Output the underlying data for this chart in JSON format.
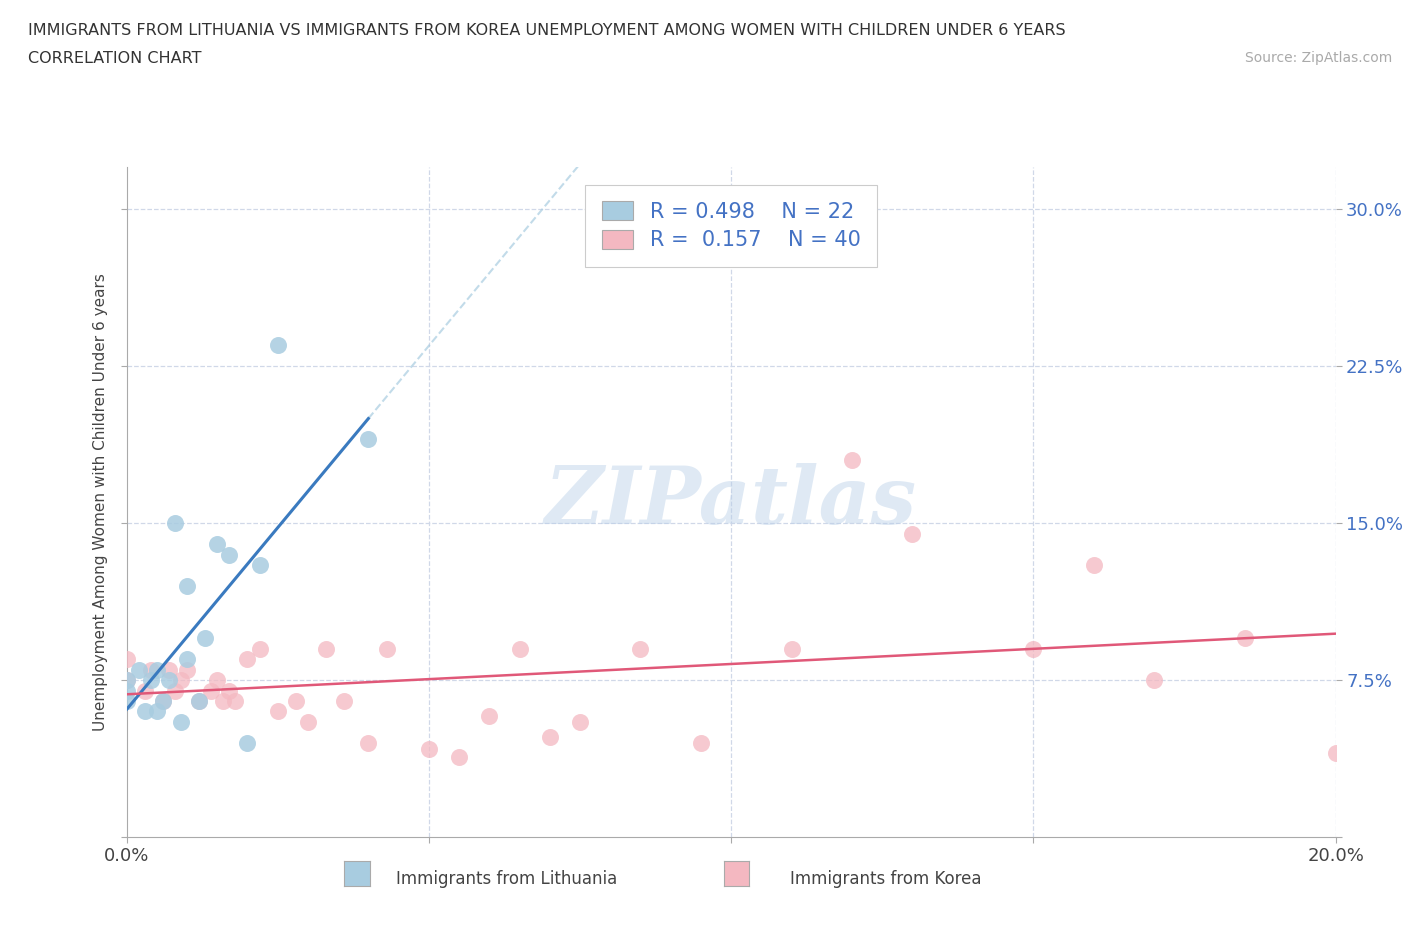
{
  "title_line1": "IMMIGRANTS FROM LITHUANIA VS IMMIGRANTS FROM KOREA UNEMPLOYMENT AMONG WOMEN WITH CHILDREN UNDER 6 YEARS",
  "title_line2": "CORRELATION CHART",
  "source": "Source: ZipAtlas.com",
  "ylabel": "Unemployment Among Women with Children Under 6 years",
  "xlim": [
    0.0,
    0.2
  ],
  "ylim": [
    0.0,
    0.32
  ],
  "xticks": [
    0.0,
    0.05,
    0.1,
    0.15,
    0.2
  ],
  "xticklabels": [
    "0.0%",
    "",
    "",
    "",
    "20.0%"
  ],
  "yticks": [
    0.0,
    0.075,
    0.15,
    0.225,
    0.3
  ],
  "yticklabels": [
    "",
    "7.5%",
    "15.0%",
    "22.5%",
    "30.0%"
  ],
  "legend_r1": "R = 0.498",
  "legend_n1": "N = 22",
  "legend_r2": "R =  0.157",
  "legend_n2": "N = 40",
  "label1": "Immigrants from Lithuania",
  "label2": "Immigrants from Korea",
  "color1": "#a8cce0",
  "color2": "#f4b8c1",
  "line_color1": "#3a7abf",
  "line_color2": "#e05878",
  "tick_color": "#4472c4",
  "watermark_text": "ZIPatlas",
  "background_color": "#ffffff",
  "grid_color": "#d0d8e8",
  "lithuania_x": [
    0.0,
    0.0,
    0.0,
    0.002,
    0.003,
    0.004,
    0.005,
    0.005,
    0.006,
    0.007,
    0.008,
    0.009,
    0.01,
    0.01,
    0.012,
    0.013,
    0.015,
    0.017,
    0.02,
    0.022,
    0.025,
    0.04
  ],
  "lithuania_y": [
    0.065,
    0.07,
    0.075,
    0.08,
    0.06,
    0.075,
    0.06,
    0.08,
    0.065,
    0.075,
    0.15,
    0.055,
    0.085,
    0.12,
    0.065,
    0.095,
    0.14,
    0.135,
    0.045,
    0.13,
    0.235,
    0.19
  ],
  "korea_x": [
    0.0,
    0.0,
    0.003,
    0.004,
    0.006,
    0.007,
    0.008,
    0.009,
    0.01,
    0.012,
    0.014,
    0.015,
    0.016,
    0.017,
    0.018,
    0.02,
    0.022,
    0.025,
    0.028,
    0.03,
    0.033,
    0.036,
    0.04,
    0.043,
    0.05,
    0.055,
    0.06,
    0.065,
    0.07,
    0.075,
    0.085,
    0.095,
    0.11,
    0.12,
    0.13,
    0.15,
    0.16,
    0.17,
    0.185,
    0.2
  ],
  "korea_y": [
    0.075,
    0.085,
    0.07,
    0.08,
    0.065,
    0.08,
    0.07,
    0.075,
    0.08,
    0.065,
    0.07,
    0.075,
    0.065,
    0.07,
    0.065,
    0.085,
    0.09,
    0.06,
    0.065,
    0.055,
    0.09,
    0.065,
    0.045,
    0.09,
    0.042,
    0.038,
    0.058,
    0.09,
    0.048,
    0.055,
    0.09,
    0.045,
    0.09,
    0.18,
    0.145,
    0.09,
    0.13,
    0.075,
    0.095,
    0.04
  ]
}
